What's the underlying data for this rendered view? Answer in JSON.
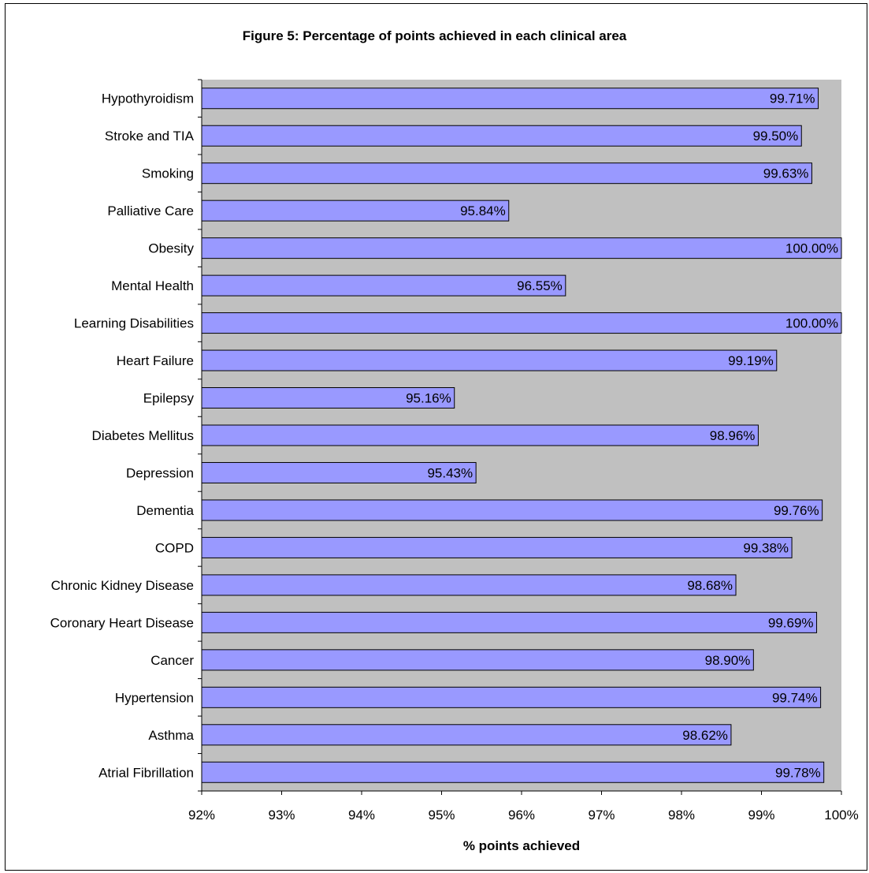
{
  "chart_data": {
    "type": "bar",
    "orientation": "horizontal",
    "title": "Figure 5: Percentage of points achieved in each clinical area",
    "xlabel": "% points achieved",
    "ylabel": "",
    "xlim": [
      92,
      100
    ],
    "x_ticks": [
      "92%",
      "93%",
      "94%",
      "95%",
      "96%",
      "97%",
      "98%",
      "99%",
      "100%"
    ],
    "categories": [
      "Hypothyroidism",
      "Stroke and TIA",
      "Smoking",
      "Palliative Care",
      "Obesity",
      "Mental Health",
      "Learning Disabilities",
      "Heart Failure",
      "Epilepsy",
      "Diabetes Mellitus",
      "Depression",
      "Dementia",
      "COPD",
      "Chronic Kidney Disease",
      "Coronary Heart Disease",
      "Cancer",
      "Hypertension",
      "Asthma",
      "Atrial Fibrillation"
    ],
    "values": [
      99.71,
      99.5,
      99.63,
      95.84,
      100.0,
      96.55,
      100.0,
      99.19,
      95.16,
      98.96,
      95.43,
      99.76,
      99.38,
      98.68,
      99.69,
      98.9,
      99.74,
      98.62,
      99.78
    ],
    "value_labels": [
      "99.71%",
      "99.50%",
      "99.63%",
      "95.84%",
      "100.00%",
      "96.55%",
      "100.00%",
      "99.19%",
      "95.16%",
      "98.96%",
      "95.43%",
      "99.76%",
      "99.38%",
      "98.68%",
      "99.69%",
      "98.90%",
      "99.74%",
      "98.62%",
      "99.78%"
    ],
    "grid": false,
    "legend": "none",
    "colors": {
      "bar_fill": "#9999ff",
      "bar_stroke": "#000000",
      "plot_background": "#c0c0c0",
      "chart_background": "#ffffff"
    }
  }
}
